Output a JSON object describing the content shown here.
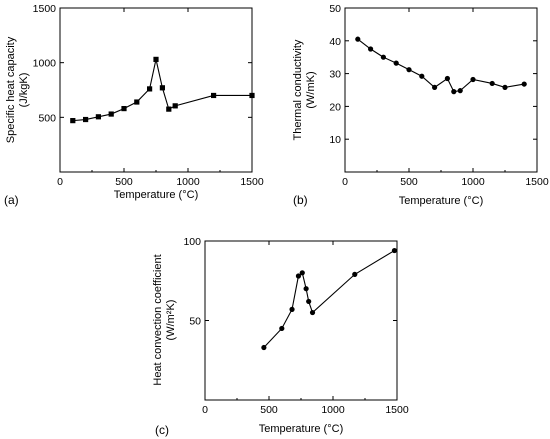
{
  "chart_data": [
    {
      "type": "line",
      "panel_label": "(a)",
      "xlabel": "Temperature (°C)",
      "ylabel": "Specific heat capacity",
      "ylabel_unit": "(J/kgK)",
      "xlim": [
        0,
        1500
      ],
      "ylim": [
        0,
        1500
      ],
      "x_ticks": [
        0,
        500,
        1000,
        1500
      ],
      "y_ticks": [
        500,
        1000,
        1500
      ],
      "marker": "square",
      "grid": false,
      "series": [
        {
          "x": [
            100,
            200,
            300,
            400,
            500,
            600,
            700,
            750,
            800,
            850,
            900,
            1200,
            1500
          ],
          "y": [
            470,
            480,
            505,
            530,
            580,
            640,
            760,
            1030,
            770,
            575,
            605,
            700,
            700
          ]
        }
      ]
    },
    {
      "type": "line",
      "panel_label": "(b)",
      "xlabel": "Temperature (°C)",
      "ylabel": "Thermal conductivity",
      "ylabel_unit": "(W/mK)",
      "xlim": [
        0,
        1500
      ],
      "ylim": [
        0,
        50
      ],
      "x_ticks": [
        0,
        500,
        1000,
        1500
      ],
      "y_ticks": [
        10,
        20,
        30,
        40,
        50
      ],
      "marker": "circle",
      "grid": false,
      "series": [
        {
          "x": [
            100,
            200,
            300,
            400,
            500,
            600,
            700,
            800,
            850,
            900,
            1000,
            1150,
            1250,
            1400
          ],
          "y": [
            40.5,
            37.5,
            35,
            33.2,
            31.2,
            29.2,
            25.8,
            28.5,
            24.5,
            24.8,
            28.2,
            27,
            25.8,
            26.8
          ]
        }
      ]
    },
    {
      "type": "line",
      "panel_label": "(c)",
      "xlabel": "Temperature (°C)",
      "ylabel": "Heat convection coefficient",
      "ylabel_unit": "(W/m²K)",
      "xlim": [
        0,
        1500
      ],
      "ylim": [
        0,
        100
      ],
      "x_ticks": [
        0,
        500,
        1000,
        1500
      ],
      "y_ticks": [
        50,
        100
      ],
      "marker": "circle",
      "grid": false,
      "series": [
        {
          "x": [
            460,
            600,
            680,
            730,
            760,
            790,
            810,
            840,
            1170,
            1480
          ],
          "y": [
            33,
            45,
            57,
            78,
            80,
            70,
            62,
            55,
            79,
            94
          ]
        }
      ]
    }
  ]
}
